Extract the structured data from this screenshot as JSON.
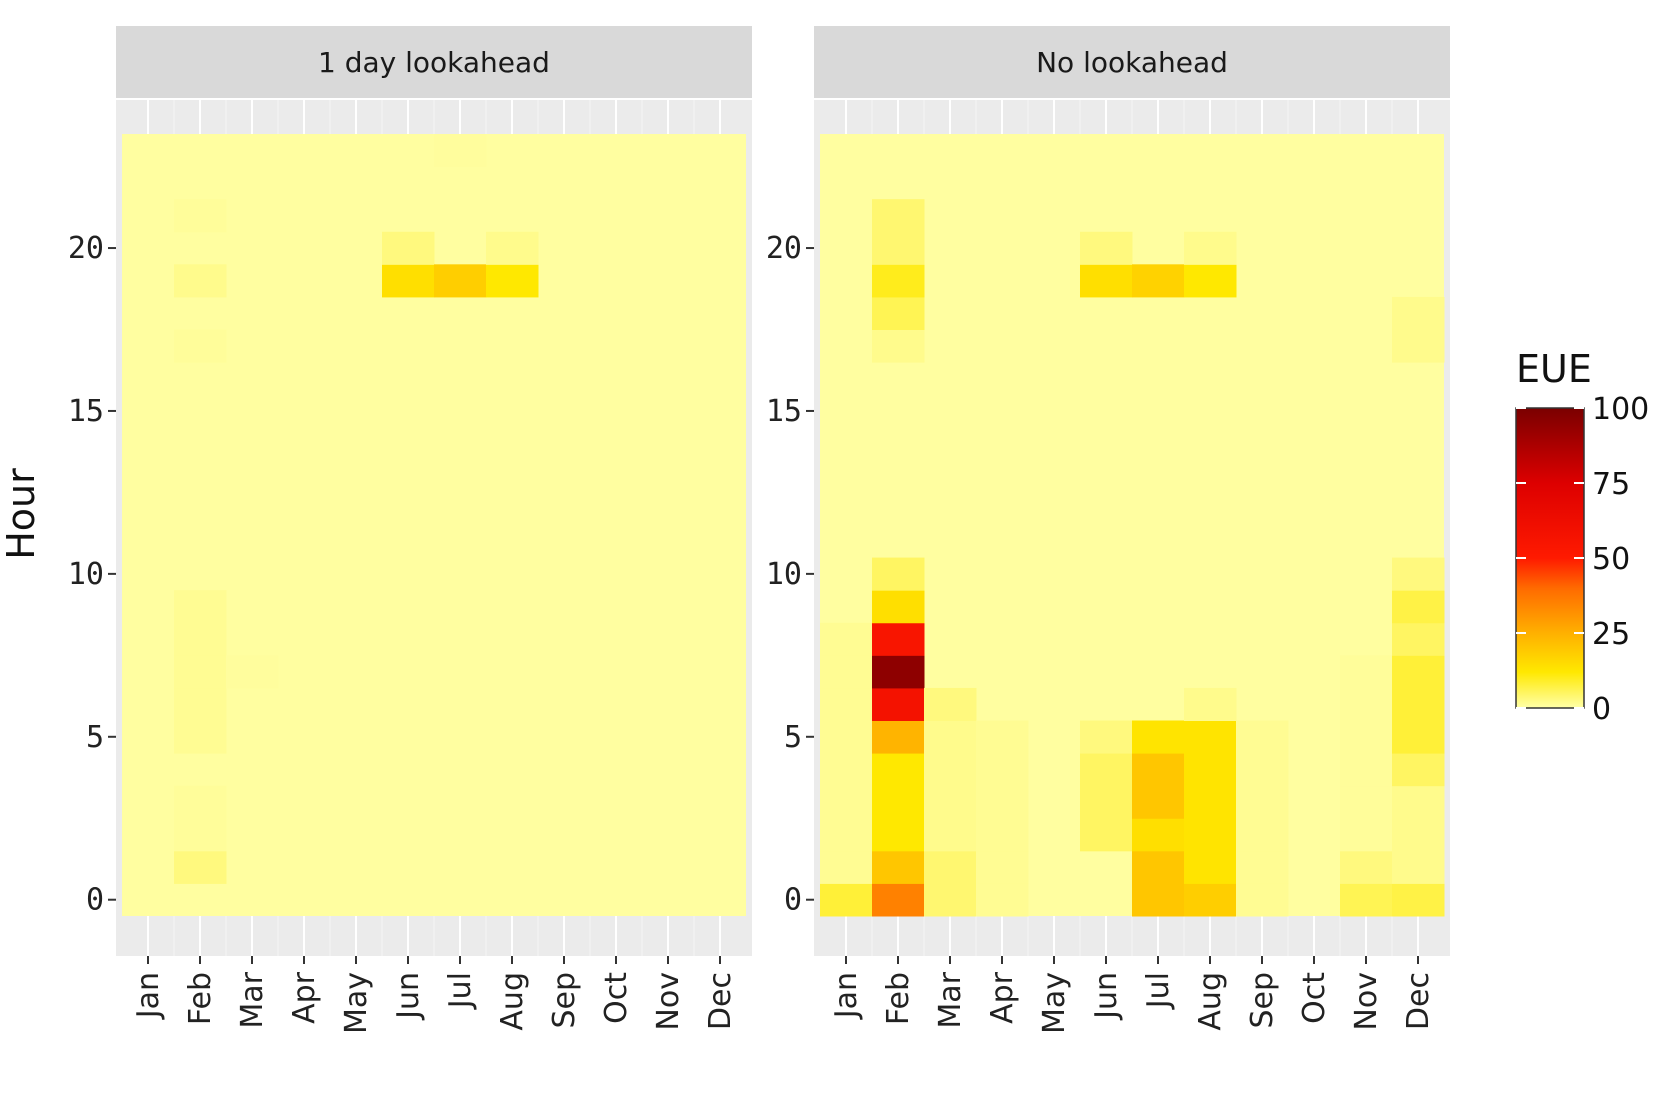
{
  "chart_data": {
    "type": "heatmap",
    "ylabel": "Hour",
    "months": [
      "Jan",
      "Feb",
      "Mar",
      "Apr",
      "May",
      "Jun",
      "Jul",
      "Aug",
      "Sep",
      "Oct",
      "Nov",
      "Dec"
    ],
    "hours_range": [
      0,
      23
    ],
    "y_ticks": [
      "0",
      "5",
      "10",
      "15",
      "20"
    ],
    "legend": {
      "title": "EUE",
      "ticks": [
        "0",
        "25",
        "50",
        "75",
        "100"
      ],
      "range": [
        0,
        100
      ]
    },
    "panels": [
      {
        "title": "1 day lookahead",
        "cells": [
          {
            "month": "Feb",
            "hours": [
              1
            ],
            "eue": 3
          },
          {
            "month": "Feb",
            "hours": [
              2,
              3
            ],
            "eue": 1
          },
          {
            "month": "Feb",
            "hours": [
              5,
              6,
              7,
              8,
              9
            ],
            "eue": 1.5
          },
          {
            "month": "Feb",
            "hours": [
              17
            ],
            "eue": 1
          },
          {
            "month": "Feb",
            "hours": [
              19
            ],
            "eue": 2
          },
          {
            "month": "Feb",
            "hours": [
              21
            ],
            "eue": 1
          },
          {
            "month": "Mar",
            "hours": [
              7
            ],
            "eue": 0.8
          },
          {
            "month": "Jun",
            "hours": [
              19
            ],
            "eue": 14
          },
          {
            "month": "Jun",
            "hours": [
              20
            ],
            "eue": 3
          },
          {
            "month": "Jul",
            "hours": [
              19
            ],
            "eue": 18
          },
          {
            "month": "Jul",
            "hours": [
              23
            ],
            "eue": 0.8
          },
          {
            "month": "Aug",
            "hours": [
              19
            ],
            "eue": 12
          },
          {
            "month": "Aug",
            "hours": [
              20
            ],
            "eue": 2
          }
        ]
      },
      {
        "title": "No lookahead",
        "cells": [
          {
            "month": "Jan",
            "hours": [
              0
            ],
            "eue": 8
          },
          {
            "month": "Jan",
            "hours": [
              1,
              2,
              3,
              4,
              5,
              6,
              7,
              8
            ],
            "eue": 1.5
          },
          {
            "month": "Feb",
            "hours": [
              0
            ],
            "eue": 35
          },
          {
            "month": "Feb",
            "hours": [
              1
            ],
            "eue": 20
          },
          {
            "month": "Feb",
            "hours": [
              2,
              3,
              4
            ],
            "eue": 12
          },
          {
            "month": "Feb",
            "hours": [
              5
            ],
            "eue": 24
          },
          {
            "month": "Feb",
            "hours": [
              6
            ],
            "eue": 58
          },
          {
            "month": "Feb",
            "hours": [
              7
            ],
            "eue": 95
          },
          {
            "month": "Feb",
            "hours": [
              8
            ],
            "eue": 55
          },
          {
            "month": "Feb",
            "hours": [
              9
            ],
            "eue": 14
          },
          {
            "month": "Feb",
            "hours": [
              10
            ],
            "eue": 5
          },
          {
            "month": "Feb",
            "hours": [
              17
            ],
            "eue": 2
          },
          {
            "month": "Feb",
            "hours": [
              18
            ],
            "eue": 6
          },
          {
            "month": "Feb",
            "hours": [
              19
            ],
            "eue": 10
          },
          {
            "month": "Feb",
            "hours": [
              20,
              21
            ],
            "eue": 4
          },
          {
            "month": "Mar",
            "hours": [
              0,
              1
            ],
            "eue": 4
          },
          {
            "month": "Mar",
            "hours": [
              2,
              3,
              4,
              5
            ],
            "eue": 2
          },
          {
            "month": "Mar",
            "hours": [
              6
            ],
            "eue": 3
          },
          {
            "month": "Apr",
            "hours": [
              0,
              1,
              2,
              3,
              4,
              5
            ],
            "eue": 1.5
          },
          {
            "month": "Jun",
            "hours": [
              2,
              3,
              4
            ],
            "eue": 5
          },
          {
            "month": "Jun",
            "hours": [
              5
            ],
            "eue": 3
          },
          {
            "month": "Jun",
            "hours": [
              19
            ],
            "eue": 14
          },
          {
            "month": "Jun",
            "hours": [
              20
            ],
            "eue": 3
          },
          {
            "month": "Jul",
            "hours": [
              0,
              1
            ],
            "eue": 20
          },
          {
            "month": "Jul",
            "hours": [
              2
            ],
            "eue": 14
          },
          {
            "month": "Jul",
            "hours": [
              3,
              4
            ],
            "eue": 20
          },
          {
            "month": "Jul",
            "hours": [
              5
            ],
            "eue": 13
          },
          {
            "month": "Jul",
            "hours": [
              19
            ],
            "eue": 17
          },
          {
            "month": "Aug",
            "hours": [
              0
            ],
            "eue": 18
          },
          {
            "month": "Aug",
            "hours": [
              1,
              2,
              3,
              4,
              5
            ],
            "eue": 13
          },
          {
            "month": "Aug",
            "hours": [
              6
            ],
            "eue": 2
          },
          {
            "month": "Aug",
            "hours": [
              19
            ],
            "eue": 12
          },
          {
            "month": "Aug",
            "hours": [
              20
            ],
            "eue": 2
          },
          {
            "month": "Sep",
            "hours": [
              0,
              1,
              2,
              3,
              4,
              5
            ],
            "eue": 1.5
          },
          {
            "month": "Nov",
            "hours": [
              0
            ],
            "eue": 6
          },
          {
            "month": "Nov",
            "hours": [
              1
            ],
            "eue": 3
          },
          {
            "month": "Nov",
            "hours": [
              2,
              3,
              4,
              5,
              6,
              7
            ],
            "eue": 1
          },
          {
            "month": "Dec",
            "hours": [
              0
            ],
            "eue": 7
          },
          {
            "month": "Dec",
            "hours": [
              1,
              2,
              3
            ],
            "eue": 2
          },
          {
            "month": "Dec",
            "hours": [
              4
            ],
            "eue": 5
          },
          {
            "month": "Dec",
            "hours": [
              5,
              6,
              7
            ],
            "eue": 8
          },
          {
            "month": "Dec",
            "hours": [
              8
            ],
            "eue": 5
          },
          {
            "month": "Dec",
            "hours": [
              9
            ],
            "eue": 7
          },
          {
            "month": "Dec",
            "hours": [
              10
            ],
            "eue": 3
          },
          {
            "month": "Dec",
            "hours": [
              17,
              18
            ],
            "eue": 2
          }
        ]
      }
    ]
  }
}
